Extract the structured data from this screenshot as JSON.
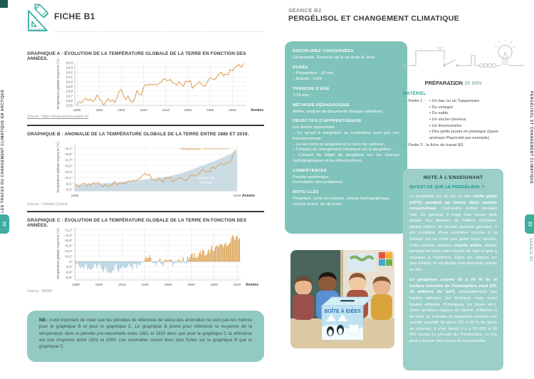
{
  "page_left": {
    "edge": {
      "vertical_label": "SUR LES TRACES DU CHANGEMENT CLIMATIQUE EN ARCTIQUE",
      "page_number": "22"
    },
    "header": {
      "title": "FICHE B1"
    },
    "nb": {
      "label": "NB :",
      "text": "Il est important de noter que les périodes de référence de calcul des anomalies ne sont pas les mêmes pour le graphique B et pour le graphique C. Le graphique B prend pour référence la moyenne de la température dans la période pré-industrielle entre 1881 et 1910 alors que pour le graphique C la référence est une moyenne entre 1901 et 2000. Les anomalies seront donc plus fortes sur le graphique B que le graphique C."
    }
  },
  "page_right": {
    "edge": {
      "vertical_label": "PERGÉLISOL ET CHANGEMENT CLIMATIQUE",
      "page_number": "23",
      "vertical_sub": "SÉANCE B2"
    },
    "header": {
      "kicker": "SÉANCE B2",
      "title": "PERGÉLISOL ET CHANGEMENT CLIMATIQUE"
    },
    "info_box": {
      "disciplines_title": "DISCIPLINES CONCERNÉES",
      "disciplines": "Géographie, Sciences de la vie et de la Terre.",
      "duree_title": "DURÉE",
      "duree": [
        "– Préparation : 20 min",
        "– Activité : 1h45"
      ],
      "age_title": "TRANCHE D'ÂGE",
      "age": "7-15 ans",
      "methode_title": "MÉTHODE PÉDAGOGIQUE",
      "methode": "Atelier, analyse de documents (images satellites).",
      "objectifs_title": "OBJECTIFS D'APPRENTISSAGE",
      "objectifs_intro": "Les élèves apprennent :",
      "objectifs": [
        "– Ce qu'est le pergélisol, sa localisation ainsi que son fonctionnement ;",
        "– Le lien entre le pergélisol et le cycle du carbone ;",
        "– L'impact du changement climatique sur le pergélisol ;",
        "– L'impact du dégel du pergélisol sur les réseaux hydrographiques et les infrastructures."
      ],
      "competences_title": "COMPÉTENCES",
      "competences": [
        "Pensée systémique",
        "Formulation des problèmes"
      ],
      "mots_title": "MOTS-CLÉS",
      "mots": "Pergélisol, cycle du carbone, réseau hydrographique, couche active, lac de fonte."
    },
    "preparation": {
      "title": "PRÉPARATION",
      "duration": "20 MIN"
    },
    "materiel": {
      "title": "MATÉRIEL",
      "part1_label": "→ Partie 1 :",
      "items": [
        "Un bac ou un Tupperware",
        "Du vinaigre",
        "Du sable",
        "Un sèche-cheveux",
        "Un thermomètre",
        "Des petits jouets en plastique (types animaux Playmobil par exemple)"
      ],
      "part2": "→ Partie 2 : la fiche de travail B2."
    },
    "note": {
      "title": "NOTE À L'ENSEIGNANT",
      "question": "QU'EST-CE QUE LE PERGÉLISOL ?",
      "p1": "Le pergélisol est un sol ou une **roche gelée (<0°C) pendant au moins deux années consécutives**, c'est-à-dire même pendant l'été. En général, il s'agit d'un terrain gelé depuis des dizaines de milliers d'années, datant parfois du dernier épisode glaciaire. Il est constitué d'une première couche à la surface qui ne reste pas gelée toute l'année. Cette couche, appelée **couche active**, dégèle pendant les trois mois chauds de l'été et gèle à nouveau à l'automne. Dans les régions les plus froides, le sol dégèle très rarement, même en été.",
      "p2": "**Le pergélisol couvre 20 à 24 % de la surface terrestre de l'hémisphère nord (20-22 millions de km²)**, principalement aux hautes latitudes (en Arctique) mais aussi hautes altitudes (l'Himalaya, les Alpes etc.). Dans certaines régions de Sibérie, d'Alaska et du nord du Canada, le pergélisol contient une grande quantité de glace (50 à 90 % de glace en volume). Il s'est formé il y a 20 000 à 50 000 durant la période du Pléistocène, et l'on peut y trouver des restes de mammouths."
    },
    "photo": {
      "box_label": "BOÎTE À IDÉES"
    }
  },
  "colors": {
    "teal_accent": "#3fae9f",
    "info_box_bg": "#7fc3ba",
    "note_box_bg": "#9ccfc8",
    "nb_box_bg": "#92cac2",
    "line_orange": "#dca35c",
    "area_blue": "#cbdbe4",
    "bar_blue": "#a9cbdc",
    "bar_orange": "#d9a050"
  },
  "chart_data": [
    {
      "id": "A",
      "type": "line",
      "title": "GRAPHIQUE A : ÉVOLUTION DE LA TEMPÉRATURE GLOBALE DE LA TERRE EN FONCTION DES ANNÉES.",
      "source": "Source : https://www.lelivrescolaire.fr/",
      "ylabel": "Température globale moyenne (°C)",
      "xlabel": "Années",
      "ylim": [
        13.5,
        14.4
      ],
      "ytick_vals": [
        13.5,
        13.6,
        13.7,
        13.8,
        13.9,
        14.0,
        14.1,
        14.2,
        14.3,
        14.4
      ],
      "ytick_labels": [
        "13,5",
        "13,6",
        "13,7",
        "13,8",
        "13,9",
        "14,0",
        "14,1",
        "14,2",
        "14,3",
        "14,4"
      ],
      "xtick_vals": [
        1860,
        1880,
        1900,
        1920,
        1940,
        1960,
        1980,
        2000
      ],
      "xtick_labels": [
        "1860",
        "1880",
        "1900",
        "1920",
        "1940",
        "1960",
        "1980",
        "2000"
      ],
      "x_start": 1860,
      "x_step": 2,
      "values": [
        13.52,
        13.58,
        13.55,
        13.62,
        13.65,
        13.6,
        13.64,
        13.58,
        13.62,
        13.72,
        13.64,
        13.6,
        13.5,
        13.58,
        13.64,
        13.58,
        13.62,
        13.56,
        13.66,
        13.8,
        13.84,
        13.7,
        13.62,
        13.7,
        13.6,
        13.56,
        13.64,
        13.82,
        13.74,
        13.72,
        13.88,
        13.94,
        13.92,
        13.95,
        13.93,
        13.95,
        13.93,
        13.96,
        14.0,
        14.06,
        14.04,
        14.02,
        14.05,
        13.98,
        13.96,
        13.92,
        14.0,
        13.94,
        13.9,
        14.02,
        13.99,
        14.03,
        13.86,
        13.92,
        13.94,
        14.0,
        13.96,
        13.9,
        13.92,
        14.02,
        14.08,
        14.06,
        14.04,
        14.1,
        14.16,
        14.2,
        14.12,
        14.16,
        14.14,
        14.26,
        14.22,
        14.3,
        14.32,
        14.36,
        14.3,
        14.38
      ],
      "line_color": "#dca35c"
    },
    {
      "id": "B",
      "type": "line+area",
      "title": "GRAPHIQUE B : ANOMALIE DE LA TEMPÉRATURE GLOBALE DE LA TERRE ENTRE 1880 ET 2019.",
      "source": "Source : Climate Central",
      "ylabel": "Température globale moyenne (°C)",
      "xlabel": "Années",
      "ylim": [
        -0.35,
        1.25
      ],
      "ytick_vals": [
        1.1,
        0.9,
        0.7,
        0.5,
        0.3,
        0.1,
        -0.1,
        -0.3
      ],
      "ytick_labels": [
        "+1,1°",
        "+0,9°",
        "+0,7°",
        "+0,5°",
        "+0,3°",
        "+0,1°",
        "-0,1°",
        "-0,3°"
      ],
      "xtick_vals": [
        1880,
        2019
      ],
      "xtick_labels": [
        "1880",
        "2019"
      ],
      "series": [
        {
          "name": "Température",
          "x_start": 1880,
          "x_step": 2,
          "values": [
            -0.1,
            -0.15,
            -0.2,
            -0.12,
            -0.08,
            -0.18,
            -0.1,
            -0.16,
            -0.05,
            -0.12,
            -0.05,
            -0.15,
            -0.22,
            -0.12,
            -0.2,
            -0.18,
            -0.14,
            -0.02,
            -0.16,
            -0.1,
            -0.08,
            -0.1,
            -0.08,
            0.0,
            -0.04,
            0.02,
            0.0,
            0.05,
            0.08,
            0.18,
            0.25,
            0.18,
            0.22,
            0.05,
            0.02,
            -0.02,
            0.1,
            0.0,
            -0.05,
            0.12,
            0.08,
            0.12,
            -0.05,
            0.02,
            0.05,
            0.1,
            0.08,
            0.0,
            0.02,
            0.12,
            0.22,
            0.18,
            0.16,
            0.22,
            0.32,
            0.38,
            0.28,
            0.32,
            0.3,
            0.48,
            0.4,
            0.52,
            0.54,
            0.58,
            0.52,
            0.62,
            0.6,
            0.68,
            0.95,
            1.05
          ],
          "color": "#dca35c"
        },
        {
          "name": "Dioxyde de carbone",
          "type": "area",
          "x": [
            1880,
            1890,
            1900,
            1910,
            1920,
            1930,
            1940,
            1950,
            1960,
            1970,
            1980,
            1990,
            2000,
            2010,
            2019
          ],
          "values": [
            -0.15,
            -0.13,
            -0.1,
            -0.08,
            -0.04,
            0.0,
            0.04,
            0.08,
            0.14,
            0.24,
            0.37,
            0.52,
            0.67,
            0.84,
            1.02
          ],
          "color": "#cbdbe4"
        }
      ]
    },
    {
      "id": "C",
      "type": "bar",
      "title": "GRAPHIQUE C : ÉVOLUTION DE LA TEMPÉRATURE GLOBALE DE LA TERRE EN FONCTION DES ANNÉES.",
      "source": "Source : NOAA",
      "ylabel": "Température globale moyenne (°C)",
      "xlabel": "Années",
      "ylim": [
        -0.7,
        1.3
      ],
      "ytick_vals": [
        1.2,
        1.0,
        0.8,
        0.6,
        0.4,
        0.2,
        0.0,
        -0.2,
        -0.4,
        -0.6
      ],
      "ytick_labels": [
        "+1,2°",
        "+1,0°",
        "+0,8°",
        "+0,6°",
        "+0,4°",
        "+0,2°",
        "0°",
        "-0,2°",
        "-0,4°",
        "-0,6°"
      ],
      "xtick_vals": [
        1880,
        1900,
        1920,
        1940,
        1960,
        1980,
        2000,
        2020
      ],
      "xtick_labels": [
        "1880",
        "1900",
        "1920",
        "1940",
        "1960",
        "1980",
        "2000",
        "2020"
      ],
      "x_start": 1880,
      "x_step": 1,
      "values": [
        -0.12,
        -0.08,
        -0.1,
        -0.18,
        -0.25,
        -0.22,
        -0.2,
        -0.28,
        -0.15,
        -0.1,
        -0.32,
        -0.25,
        -0.3,
        -0.32,
        -0.28,
        -0.22,
        -0.12,
        -0.1,
        -0.25,
        -0.15,
        -0.08,
        -0.14,
        -0.25,
        -0.32,
        -0.4,
        -0.28,
        -0.2,
        -0.38,
        -0.42,
        -0.45,
        -0.4,
        -0.44,
        -0.35,
        -0.32,
        -0.15,
        -0.1,
        -0.32,
        -0.4,
        -0.3,
        -0.25,
        -0.22,
        -0.18,
        -0.25,
        -0.22,
        -0.25,
        -0.18,
        -0.08,
        -0.18,
        -0.18,
        -0.3,
        -0.12,
        -0.08,
        -0.12,
        -0.25,
        -0.1,
        -0.15,
        -0.12,
        -0.02,
        0.0,
        -0.02,
        0.1,
        0.18,
        0.12,
        0.14,
        0.25,
        0.15,
        -0.02,
        -0.05,
        -0.05,
        -0.08,
        -0.15,
        -0.02,
        0.04,
        0.12,
        -0.1,
        -0.12,
        -0.18,
        0.05,
        0.08,
        0.05,
        -0.02,
        0.08,
        0.05,
        0.08,
        -0.18,
        -0.1,
        -0.04,
        -0.02,
        -0.06,
        0.08,
        0.04,
        -0.08,
        0.02,
        0.16,
        -0.06,
        -0.01,
        -0.1,
        0.18,
        0.07,
        0.17,
        0.27,
        0.32,
        0.14,
        0.31,
        0.16,
        0.12,
        0.19,
        0.33,
        0.4,
        0.28,
        0.45,
        0.41,
        0.23,
        0.24,
        0.32,
        0.46,
        0.33,
        0.47,
        0.62,
        0.41,
        0.4,
        0.54,
        0.6,
        0.61,
        0.54,
        0.67,
        0.63,
        0.66,
        0.54,
        0.65,
        0.72,
        0.58,
        0.63,
        0.67,
        0.74,
        0.9,
        1.0,
        0.92,
        0.82,
        0.95,
        0.98,
        0.84,
        0.89
      ],
      "pos_color": "#d9a050",
      "neg_color": "#a9cbdc"
    }
  ]
}
